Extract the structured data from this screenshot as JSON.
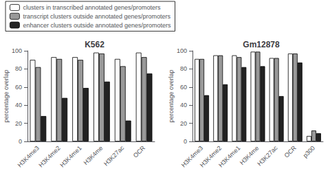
{
  "chart_data": [
    {
      "type": "bar",
      "title": "K562",
      "ylabel": "percentage overlap",
      "categories": [
        "H3K4me3",
        "H3K4me2",
        "H3K4me1",
        "H3K4me",
        "H3K27ac",
        "OCR"
      ],
      "series": [
        {
          "name": "clusters in transcribed annotated genes/promoters",
          "color": "#ffffff",
          "values": [
            90,
            93,
            93,
            98,
            91,
            98
          ]
        },
        {
          "name": "transcript clusters outside annotated genes/promoters",
          "color": "#999999",
          "values": [
            82,
            91,
            90,
            97,
            83,
            93
          ]
        },
        {
          "name": "enhancer clusters outside annotated genes/promoters",
          "color": "#222222",
          "values": [
            28,
            48,
            59,
            66,
            23,
            75
          ]
        }
      ],
      "ylim": [
        0,
        100
      ],
      "yticks": [
        0,
        20,
        40,
        60,
        80,
        100
      ],
      "grid": false,
      "legend": "top left"
    },
    {
      "type": "bar",
      "title": "Gm12878",
      "ylabel": "percentage overlap",
      "categories": [
        "H3K4me3",
        "H3K4me2",
        "H3K4me1",
        "H3K4me",
        "H3K27ac",
        "OCR",
        "p300"
      ],
      "series": [
        {
          "name": "clusters in transcribed annotated genes/promoters",
          "color": "#ffffff",
          "values": [
            91,
            95,
            95,
            99,
            92,
            97,
            6
          ]
        },
        {
          "name": "transcript clusters outside annotated genes/promoters",
          "color": "#999999",
          "values": [
            91,
            95,
            93,
            99,
            92,
            97,
            12
          ]
        },
        {
          "name": "enhancer clusters outside annotated genes/promoters",
          "color": "#222222",
          "values": [
            51,
            63,
            82,
            83,
            50,
            87,
            9
          ]
        }
      ],
      "ylim": [
        0,
        100
      ],
      "yticks": [
        0,
        20,
        40,
        60,
        80,
        100
      ],
      "grid": false
    }
  ]
}
